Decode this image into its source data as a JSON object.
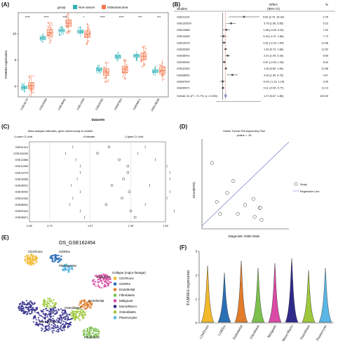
{
  "panels": {
    "A": "(A)",
    "B": "(B)",
    "C": "(C)",
    "D": "(D)",
    "E": "(E)",
    "F": "(F)"
  },
  "chart_data": [
    {
      "panel": "A",
      "type": "box",
      "legend_title": "group",
      "legend": [
        "Non-cancer",
        "Osteosarcoma"
      ],
      "colors": {
        "non_cancer": "#2bb3b8",
        "osteosarcoma": "#f4774b"
      },
      "ylabel": "FAM60A expression",
      "xlabel": "Datasets",
      "yticks": [
        "0",
        "5",
        "10"
      ],
      "ylim": [
        -2,
        14
      ],
      "categories": [
        "GSE16170",
        "GSE33383",
        "GSE36001",
        "GSE14359",
        "GSE42352",
        "GSE87624",
        "GSE99671",
        "GSE126209"
      ],
      "significance": [
        "****",
        "****",
        "****",
        "*",
        "****",
        "****",
        "***",
        "***"
      ],
      "non_cancer_medians": [
        -0.2,
        9.2,
        10.6,
        10.4,
        3.2,
        5.6,
        5.8,
        2.9
      ],
      "osteosarcoma_medians": [
        0.1,
        10.2,
        12.0,
        9.9,
        2.7,
        3.2,
        5.7,
        3.0
      ]
    },
    {
      "panel": "B",
      "type": "forest",
      "header": {
        "studies": "Studies",
        "effect": "Effect",
        "ci": "(95% CI)",
        "pct": "%"
      },
      "studies": [
        "GSE11414",
        "GSE126209",
        "GSE12865",
        "GSE14359",
        "GSE19276",
        "GSE33383",
        "GSE36001",
        "GSE39262",
        "GSE42352",
        "GSE68591",
        "GSE87624",
        "GSE99671"
      ],
      "effects": [
        9.5,
        3.75,
        1.58,
        0.4,
        0.61,
        1.3,
        2.21,
        0.67,
        1.39,
        4.32,
        -0.02,
        0.11
      ],
      "ci_text": [
        "9.50 (2.70, 16.30)",
        "3.75 (1.65, 5.85)",
        "1.58 (-0.05, 3.20)",
        "0.40 (-1.07, 1.86)",
        "0.61 (-0.33, 1.54)",
        "1.30 (0.72, 1.88)",
        "2.21 (1.09, 3.33)",
        "0.67 (-0.05, 1.39)",
        "1.39 (0.82, 1.96)",
        "4.32 (1.90, 6.75)",
        "-0.02 (-1.19, 1.15)",
        "0.11 (-0.54, 0.77)"
      ],
      "lower": [
        2.7,
        1.65,
        -0.05,
        -1.07,
        -0.33,
        0.72,
        1.09,
        -0.05,
        0.82,
        1.9,
        -1.19,
        -0.54
      ],
      "upper": [
        16.3,
        5.85,
        3.2,
        1.86,
        1.54,
        1.88,
        3.33,
        1.39,
        1.96,
        6.75,
        1.15,
        0.77
      ],
      "weights": [
        "0.75",
        "5.22",
        "7.00",
        "7.72",
        "10.58",
        "12.52",
        "8.53",
        "8.44",
        "12.56",
        "4.07",
        "9.25",
        "12.14"
      ],
      "overall_label": "Overall, DL (I² = 71.7%, p = 0.000)",
      "overall_ci": "1.27 (0.67, 1.88)",
      "overall_pct": "100.00",
      "overall": [
        1.27,
        0.67,
        1.88
      ],
      "xlim": [
        -3,
        17
      ],
      "xticks": []
    },
    {
      "panel": "C",
      "type": "influence",
      "title": "Meta-analysis estimates, given named study is omitted",
      "legend": [
        "| Lower CI Limit",
        "○Estimate",
        "| Upper CI Limit"
      ],
      "studies": [
        "GSE11414",
        "GSE126209",
        "GSE12865",
        "GSE14359",
        "GSE19276",
        "GSE33383",
        "GSE36001",
        "GSE39262",
        "GSE42352",
        "GSE68591",
        "GSE87624",
        "GSE99671"
      ],
      "estimates": [
        1.2,
        1.12,
        1.27,
        1.33,
        1.33,
        1.3,
        1.22,
        1.34,
        1.29,
        1.18,
        1.35,
        1.38
      ],
      "lower": [
        0.95,
        0.9,
        0.97,
        1.0,
        1.0,
        0.98,
        0.94,
        1.0,
        0.95,
        0.93,
        1.0,
        1.03
      ],
      "upper": [
        1.45,
        1.4,
        1.52,
        1.6,
        1.62,
        1.62,
        1.48,
        1.62,
        1.6,
        1.45,
        1.65,
        1.7
      ],
      "xticks": [
        "0.65",
        "0.79",
        "1.07",
        "1.35",
        "1.59"
      ],
      "xtick_values": [
        0.65,
        0.79,
        1.07,
        1.35,
        1.59
      ],
      "xlim": [
        0.65,
        1.59
      ]
    },
    {
      "panel": "D",
      "type": "scatter",
      "title": "Deeks' Funnel Plot Asymmetry Test",
      "pvalue": "pvalue = .16",
      "xlabel": "Diagnostic Odds Ratio",
      "ylabel": "1/root(ESS)",
      "legend": [
        "Study",
        "Regression Line"
      ],
      "points_x": [
        1.05,
        5.0,
        3.2,
        12.0,
        22.0,
        35.0,
        37.0,
        1.9,
        7.0,
        24.0,
        40.0,
        1.5
      ],
      "points_y": [
        0.26,
        0.2,
        0.16,
        0.12,
        0.14,
        0.11,
        0.11,
        0.09,
        0.09,
        0.08,
        0.07,
        0.13
      ],
      "regression": [
        [
          0.5,
          0.05
        ],
        [
          300,
          0.33
        ]
      ],
      "xlim": [
        0.5,
        300
      ],
      "ylim": [
        0.04,
        0.34
      ]
    },
    {
      "panel": "E",
      "type": "umap",
      "title": "OS_GSE162454",
      "legend_title": "Celltype (major-lineage)",
      "celltypes": [
        {
          "name": "CD4Tconv",
          "color": "#f1b92a"
        },
        {
          "name": "CD8Tex",
          "color": "#2b6fb5"
        },
        {
          "name": "Endothelial",
          "color": "#e17c2b"
        },
        {
          "name": "Fibroblasts",
          "color": "#7cc04d"
        },
        {
          "name": "Malignant",
          "color": "#d84aa5"
        },
        {
          "name": "Mono/Macro",
          "color": "#2f2a8a"
        },
        {
          "name": "Osteoblasts",
          "color": "#9ec83c"
        },
        {
          "name": "Plasmocytes",
          "color": "#5bb6e5"
        }
      ],
      "cluster_labels": [
        "CD4Tconv",
        "CD8Tex",
        "Plasmocytes",
        "Malignant",
        "Endothelial",
        "Osteoblasts",
        "Mono/Macro",
        "Fibroblasts"
      ]
    },
    {
      "panel": "F",
      "type": "violin",
      "ylabel": "FAM60A expression",
      "yticks": [
        "0",
        "1",
        "2",
        "3"
      ],
      "ylim": [
        0,
        3
      ],
      "categories": [
        "CD4Tconv",
        "CD8Tex",
        "Endothelial",
        "Fibroblasts",
        "Malignant",
        "Mono/Macro",
        "Osteoblasts",
        "Plasmocytes"
      ],
      "colors": [
        "#f1b92a",
        "#2b6fb5",
        "#e17c2b",
        "#7cc04d",
        "#d84aa5",
        "#2f2a8a",
        "#9ec83c",
        "#5bb6e5"
      ],
      "max_values": [
        2.4,
        2.1,
        2.6,
        2.3,
        2.5,
        2.7,
        2.2,
        2.3
      ]
    }
  ]
}
